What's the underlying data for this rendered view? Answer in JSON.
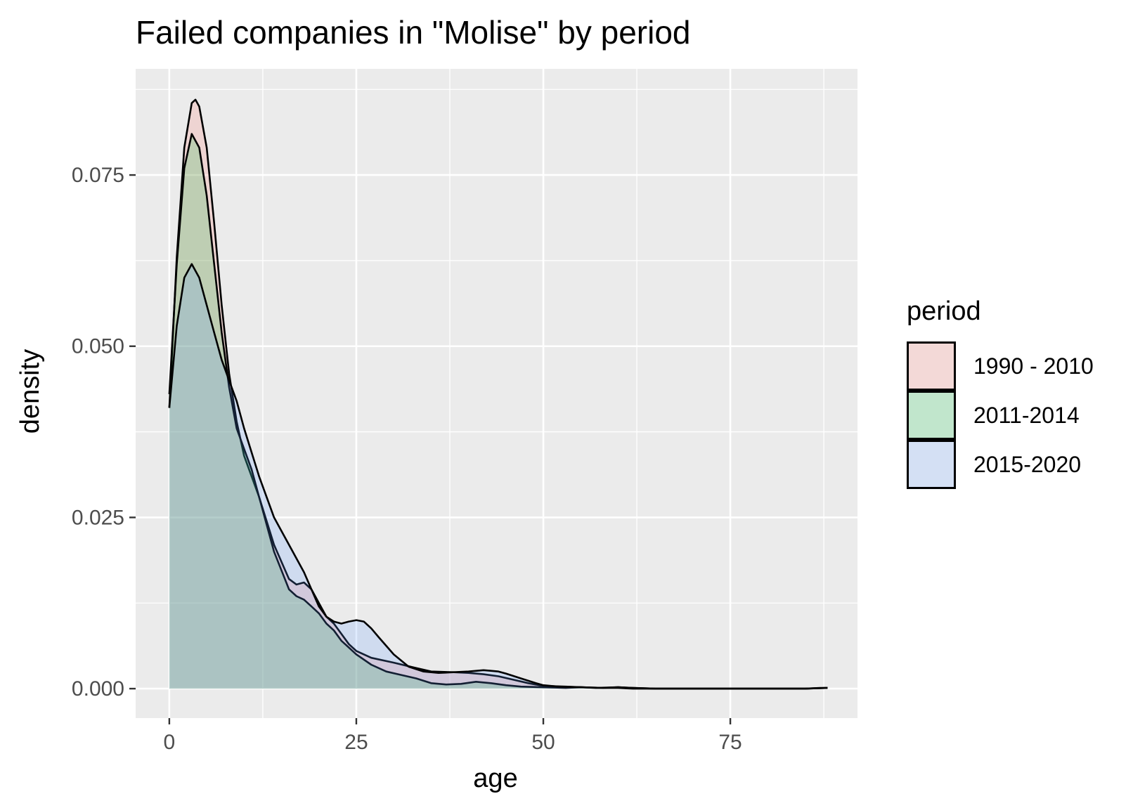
{
  "chart_data": {
    "type": "area",
    "title": "Failed companies in \"Molise\" by period",
    "xlabel": "age",
    "ylabel": "density",
    "xlim": [
      -4.5,
      92
    ],
    "ylim": [
      -0.0043,
      0.0905
    ],
    "x_ticks": [
      0,
      25,
      50,
      75
    ],
    "x_tick_labels": [
      "0",
      "25",
      "50",
      "75"
    ],
    "y_ticks": [
      0,
      0.025,
      0.05,
      0.075
    ],
    "y_tick_labels": [
      "0.000",
      "0.025",
      "0.050",
      "0.075"
    ],
    "grid": true,
    "legend": {
      "title": "period",
      "position": "right"
    },
    "series": [
      {
        "name": "1990 - 2010",
        "fill": "#f8766d",
        "x": [
          0,
          1,
          2,
          3,
          3.5,
          4,
          5,
          6,
          7,
          8,
          9,
          10,
          12,
          14,
          16,
          17,
          18,
          19,
          20,
          21,
          22,
          23,
          24,
          25,
          27,
          30,
          33,
          35,
          38,
          40,
          42,
          44,
          46,
          48,
          50,
          53,
          55,
          57,
          60,
          62,
          65,
          70,
          75,
          80,
          85,
          87,
          88
        ],
        "y": [
          0.041,
          0.063,
          0.079,
          0.0855,
          0.086,
          0.085,
          0.079,
          0.068,
          0.056,
          0.046,
          0.039,
          0.034,
          0.028,
          0.021,
          0.016,
          0.0152,
          0.0155,
          0.0145,
          0.0125,
          0.0105,
          0.0095,
          0.008,
          0.0065,
          0.0055,
          0.0045,
          0.0038,
          0.003,
          0.0025,
          0.0024,
          0.0023,
          0.0021,
          0.0018,
          0.0013,
          0.0008,
          0.0004,
          0.0003,
          0.0002,
          0.0001,
          0.0002,
          0.0001,
          0,
          0,
          0,
          0,
          0,
          0.0001,
          0.0001
        ]
      },
      {
        "name": "2011-2014",
        "fill": "#00ba38",
        "x": [
          0,
          1,
          2,
          3,
          4,
          5,
          6,
          7,
          8,
          9,
          10,
          11,
          12,
          14,
          16,
          17,
          18,
          19,
          20,
          21,
          22,
          23,
          24,
          25,
          27,
          29,
          31,
          33,
          35,
          37,
          39,
          41,
          43,
          45,
          47,
          50,
          53,
          55,
          58,
          60,
          62,
          65,
          70,
          75,
          80,
          85,
          88
        ],
        "y": [
          0.043,
          0.062,
          0.076,
          0.081,
          0.079,
          0.072,
          0.062,
          0.052,
          0.044,
          0.038,
          0.035,
          0.032,
          0.028,
          0.02,
          0.0145,
          0.0135,
          0.013,
          0.012,
          0.011,
          0.0095,
          0.0085,
          0.007,
          0.006,
          0.005,
          0.0035,
          0.0025,
          0.002,
          0.0015,
          0.0008,
          0.0006,
          0.0007,
          0.001,
          0.0008,
          0.0005,
          0.0003,
          0.0002,
          0.0001,
          0.0002,
          0.0001,
          0.0002,
          0.0001,
          0,
          0,
          0,
          0,
          0,
          0.0001
        ]
      },
      {
        "name": "2015-2020",
        "fill": "#619cff",
        "x": [
          0,
          1,
          2,
          3,
          4,
          5,
          6,
          7,
          8,
          9,
          10,
          12,
          14,
          16,
          18,
          20,
          21,
          22,
          23,
          24,
          25,
          26,
          27,
          28,
          30,
          32,
          34,
          36,
          38,
          40,
          42,
          43,
          44,
          45,
          47,
          49,
          50,
          52,
          55,
          58,
          60,
          62,
          65,
          70,
          75,
          80,
          85,
          88
        ],
        "y": [
          0.041,
          0.053,
          0.06,
          0.062,
          0.06,
          0.056,
          0.052,
          0.048,
          0.045,
          0.042,
          0.038,
          0.031,
          0.025,
          0.021,
          0.017,
          0.012,
          0.0105,
          0.0098,
          0.0095,
          0.0098,
          0.01,
          0.0098,
          0.0088,
          0.0075,
          0.005,
          0.0032,
          0.0025,
          0.0023,
          0.0024,
          0.0025,
          0.0027,
          0.0026,
          0.0025,
          0.0022,
          0.0015,
          0.0008,
          0.0005,
          0.0003,
          0.0002,
          0.0001,
          0.0001,
          0,
          0,
          0,
          0,
          0,
          0,
          0.0001
        ]
      }
    ]
  }
}
